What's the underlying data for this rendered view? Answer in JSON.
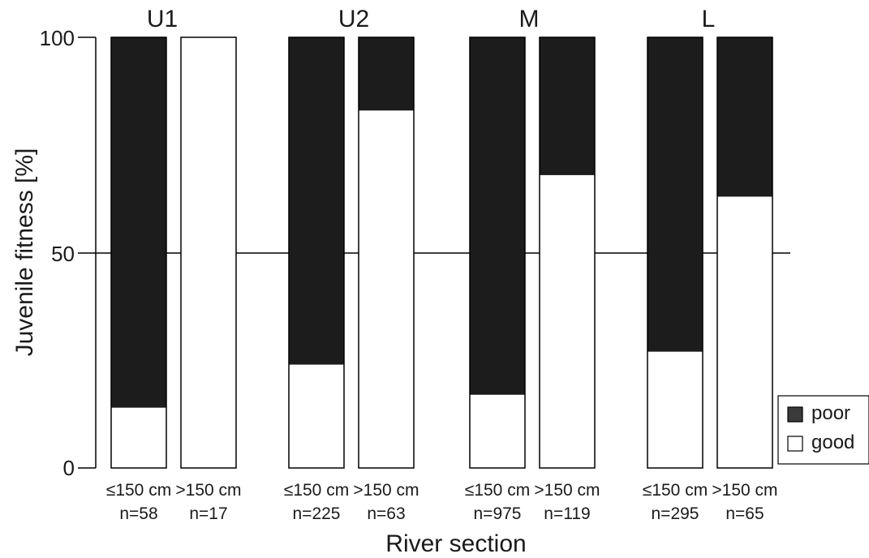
{
  "chart_data": {
    "type": "bar",
    "stacked": true,
    "ylabel": "Juvenile fitness [%]",
    "xlabel": "River section",
    "ylim": [
      0,
      100
    ],
    "yticks": [
      "0",
      "50",
      "100"
    ],
    "grid": false,
    "legend_position": "bottom-right",
    "groups": [
      "U1",
      "U2",
      "M",
      "L"
    ],
    "categories": [
      {
        "group": "U1",
        "label": "≤150 cm",
        "n": "n=58"
      },
      {
        "group": "U1",
        "label": ">150 cm",
        "n": "n=17"
      },
      {
        "group": "U2",
        "label": "≤150 cm",
        "n": "n=225"
      },
      {
        "group": "U2",
        "label": ">150 cm",
        "n": "n=63"
      },
      {
        "group": "M",
        "label": "≤150 cm",
        "n": "n=975"
      },
      {
        "group": "M",
        "label": ">150 cm",
        "n": "n=119"
      },
      {
        "group": "L",
        "label": "≤150 cm",
        "n": "n=295"
      },
      {
        "group": "L",
        "label": ">150 cm",
        "n": "n=65"
      }
    ],
    "series": [
      {
        "name": "good",
        "color": "#ffffff",
        "values": [
          14,
          100,
          24,
          83,
          17,
          68,
          27,
          63
        ]
      },
      {
        "name": "poor",
        "color": "#1c1c1c",
        "values": [
          86,
          0,
          76,
          17,
          83,
          32,
          73,
          37
        ]
      }
    ],
    "legend": [
      {
        "name": "poor",
        "color": "#3a3a3a"
      },
      {
        "name": "good",
        "color": "#ffffff"
      }
    ]
  }
}
